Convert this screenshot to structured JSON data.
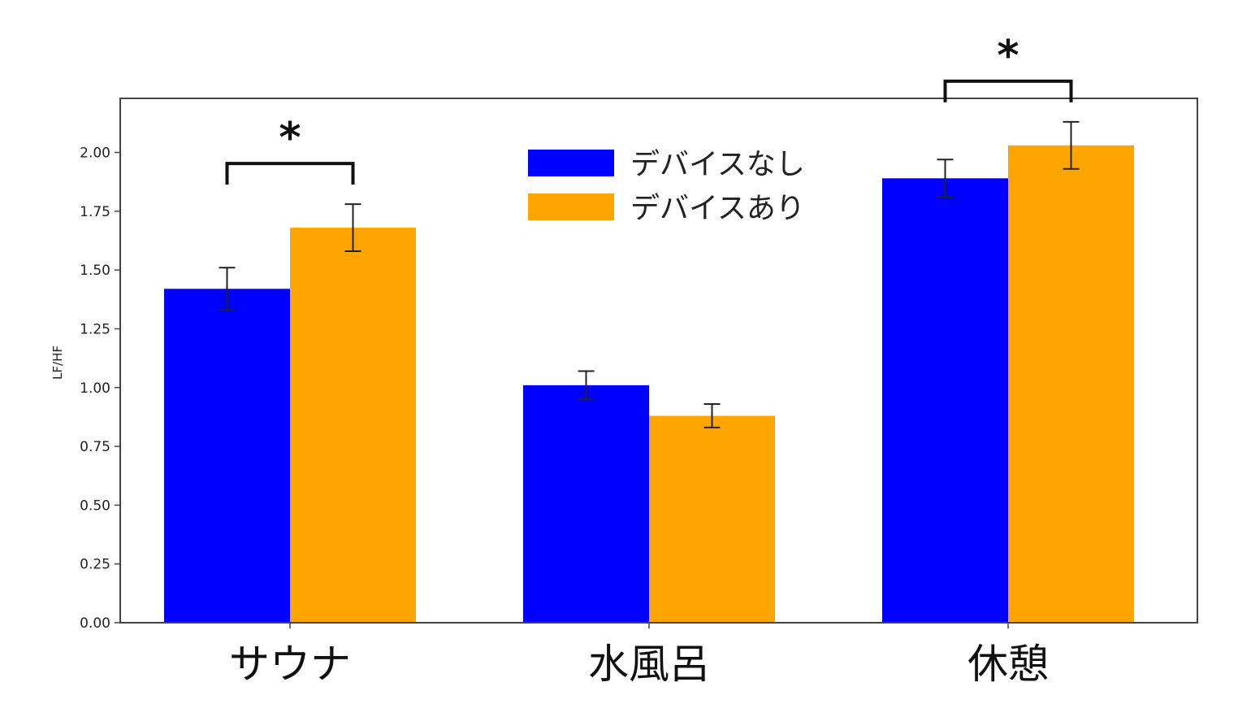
{
  "chart_data": {
    "type": "bar",
    "ylabel": "LF/HF",
    "ylim": [
      0,
      2.23
    ],
    "yticks": [
      "0.00",
      "0.25",
      "0.50",
      "0.75",
      "1.00",
      "1.25",
      "1.50",
      "1.75",
      "2.00"
    ],
    "categories": [
      "サウナ",
      "水風呂",
      "休憩"
    ],
    "series": [
      {
        "name": "デバイスなし",
        "color": "#0000ff",
        "values": [
          1.42,
          1.01,
          1.89
        ],
        "errors": [
          0.09,
          0.06,
          0.08
        ]
      },
      {
        "name": "デバイスあり",
        "color": "#ffa500",
        "values": [
          1.68,
          0.88,
          2.03
        ],
        "errors": [
          0.1,
          0.05,
          0.1
        ]
      }
    ],
    "significance": [
      {
        "category": "サウナ",
        "label": "*"
      },
      {
        "category": "休憩",
        "label": "*"
      }
    ],
    "legend": "top-center",
    "grid": false
  }
}
